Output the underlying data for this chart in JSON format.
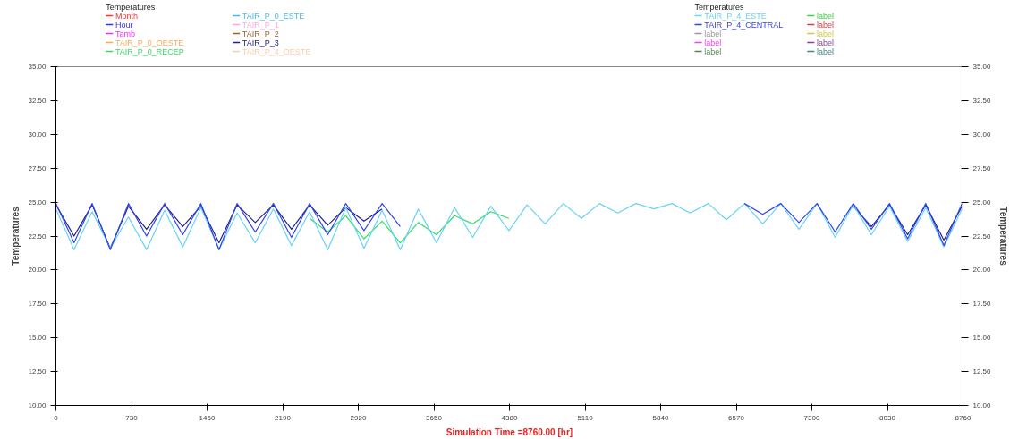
{
  "chart_data": {
    "type": "line",
    "xlabel": "Simulation Time =8760.00 [hr]",
    "ylabel": "Temperatures",
    "y2label": "Temperatures",
    "legend_title": "Temperatures",
    "legend": "top",
    "grid": false,
    "marker": "none",
    "line_style": "solid",
    "x": [
      0,
      175,
      350,
      525,
      700,
      875,
      1050,
      1225,
      1400,
      1575,
      1750,
      1925,
      2100,
      2275,
      2450,
      2625,
      2800,
      2975,
      3150,
      3325,
      3500,
      3675,
      3850,
      4025,
      4200,
      4375,
      4550,
      4725,
      4900,
      5075,
      5250,
      5425,
      5600,
      5775,
      5950,
      6125,
      6300,
      6475,
      6650,
      6825,
      7000,
      7175,
      7350,
      7525,
      7700,
      7875,
      8050,
      8225,
      8400,
      8575,
      8750
    ],
    "xlim": [
      0,
      8760
    ],
    "xticks": [
      0,
      730,
      1460,
      2190,
      2920,
      3650,
      4380,
      5110,
      5840,
      6570,
      7300,
      8030,
      8760
    ],
    "ylim": [
      10,
      35
    ],
    "yticks": [
      {
        "value": 10,
        "label": "10.00"
      },
      {
        "value": 12.5,
        "label": "12.50"
      },
      {
        "value": 15,
        "label": "15.00"
      },
      {
        "value": 17.5,
        "label": "17.50"
      },
      {
        "value": 20,
        "label": "20.00"
      },
      {
        "value": 22.5,
        "label": "22.50"
      },
      {
        "value": 25,
        "label": "25.00"
      },
      {
        "value": 27.5,
        "label": "27.50"
      },
      {
        "value": 30,
        "label": "30.00"
      },
      {
        "value": 32.5,
        "label": "32.50"
      },
      {
        "value": 35,
        "label": "35.00"
      }
    ],
    "y2lim": [
      10,
      35
    ],
    "y2ticks": [
      {
        "value": 10,
        "label": "10.00"
      },
      {
        "value": 12.5,
        "label": "12.50"
      },
      {
        "value": 15,
        "label": "15.00"
      },
      {
        "value": 17.5,
        "label": "17.50"
      },
      {
        "value": 20,
        "label": "20.00"
      },
      {
        "value": 22.5,
        "label": "22.50"
      },
      {
        "value": 25,
        "label": "25.00"
      },
      {
        "value": 27.5,
        "label": "27.50"
      },
      {
        "value": 30,
        "label": "30.00"
      },
      {
        "value": 32.5,
        "label": "32.50"
      },
      {
        "value": 35,
        "label": "35.00"
      }
    ],
    "series": [
      {
        "name": "Month",
        "color": "#ff3333",
        "values": [
          null,
          null,
          null,
          null,
          null,
          null,
          null,
          null,
          null,
          null,
          null,
          null,
          null,
          null,
          null,
          null,
          null,
          null,
          null,
          null,
          null,
          null,
          null,
          null,
          null,
          null,
          null,
          null,
          null,
          null,
          null,
          null,
          null,
          null,
          null,
          null,
          null,
          null,
          null,
          null,
          null,
          null,
          null,
          null,
          null,
          null,
          null,
          null,
          null,
          null,
          null
        ]
      },
      {
        "name": "Hour",
        "color": "#3333ff",
        "values": [
          null,
          null,
          null,
          null,
          null,
          null,
          null,
          null,
          null,
          null,
          null,
          null,
          null,
          null,
          null,
          null,
          null,
          null,
          null,
          null,
          null,
          null,
          null,
          null,
          null,
          null,
          null,
          null,
          null,
          null,
          null,
          null,
          null,
          null,
          null,
          null,
          null,
          null,
          null,
          null,
          null,
          null,
          null,
          null,
          null,
          null,
          null,
          null,
          null,
          null,
          null
        ]
      },
      {
        "name": "Tamb",
        "color": "#ee33ee",
        "values": [
          null,
          null,
          null,
          null,
          null,
          null,
          null,
          null,
          null,
          null,
          null,
          null,
          null,
          null,
          null,
          null,
          null,
          null,
          null,
          null,
          null,
          null,
          null,
          null,
          null,
          null,
          null,
          null,
          null,
          null,
          null,
          null,
          null,
          null,
          null,
          null,
          null,
          null,
          null,
          null,
          null,
          null,
          null,
          null,
          null,
          null,
          null,
          null,
          null,
          null,
          null
        ]
      },
      {
        "name": "TAIR_P_0_OESTE",
        "color": "#ffaa55",
        "values": [
          null,
          null,
          null,
          null,
          null,
          null,
          null,
          null,
          null,
          null,
          null,
          null,
          null,
          null,
          null,
          null,
          null,
          null,
          null,
          null,
          null,
          null,
          null,
          null,
          null,
          null,
          null,
          null,
          null,
          null,
          null,
          null,
          null,
          null,
          null,
          null,
          null,
          null,
          null,
          null,
          null,
          null,
          null,
          null,
          null,
          null,
          null,
          null,
          null,
          null,
          null
        ]
      },
      {
        "name": "TAIR_P_0_RECEP",
        "color": "#33dd66",
        "values": [
          null,
          null,
          null,
          null,
          null,
          null,
          null,
          null,
          null,
          null,
          null,
          null,
          null,
          null,
          23.8,
          22.8,
          24.0,
          22.3,
          23.6,
          22.0,
          23.5,
          22.6,
          24.0,
          23.4,
          24.3,
          23.8,
          null,
          null,
          null,
          null,
          null,
          null,
          null,
          null,
          null,
          null,
          null,
          null,
          null,
          null,
          null,
          null,
          null,
          null,
          null,
          null,
          null,
          null,
          null,
          null,
          null
        ]
      },
      {
        "name": "TAIR_P_0_ESTE",
        "color": "#44bbee",
        "values": [
          null,
          null,
          null,
          null,
          null,
          null,
          null,
          null,
          null,
          null,
          null,
          null,
          null,
          null,
          null,
          null,
          null,
          null,
          null,
          null,
          null,
          null,
          null,
          null,
          null,
          null,
          null,
          null,
          null,
          null,
          null,
          null,
          null,
          null,
          null,
          null,
          null,
          null,
          null,
          null,
          null,
          null,
          null,
          null,
          null,
          null,
          null,
          null,
          null,
          null,
          null
        ]
      },
      {
        "name": "TAIR_P_1",
        "color": "#ffaadd",
        "values": [
          null,
          null,
          null,
          null,
          null,
          null,
          null,
          null,
          null,
          null,
          null,
          null,
          null,
          null,
          null,
          null,
          null,
          null,
          null,
          null,
          null,
          null,
          null,
          null,
          null,
          null,
          null,
          null,
          null,
          null,
          null,
          null,
          null,
          null,
          null,
          null,
          null,
          null,
          null,
          null,
          null,
          null,
          null,
          null,
          null,
          null,
          null,
          null,
          null,
          null,
          null
        ]
      },
      {
        "name": "TAIR_P_2",
        "color": "#996633",
        "values": [
          null,
          null,
          null,
          null,
          null,
          null,
          null,
          null,
          null,
          null,
          null,
          null,
          null,
          null,
          null,
          null,
          null,
          null,
          null,
          null,
          null,
          null,
          null,
          null,
          null,
          null,
          null,
          null,
          null,
          null,
          null,
          null,
          null,
          null,
          null,
          null,
          null,
          null,
          null,
          null,
          null,
          null,
          null,
          null,
          null,
          null,
          null,
          null,
          null,
          null,
          null
        ]
      },
      {
        "name": "TAIR_P_3",
        "color": "#222288",
        "values": [
          24.8,
          22.5,
          24.8,
          21.6,
          24.7,
          23.0,
          24.8,
          23.2,
          24.7,
          22.0,
          24.8,
          23.5,
          24.8,
          23.0,
          24.8,
          23.3,
          24.6,
          23.6,
          24.5,
          null,
          null,
          null,
          null,
          null,
          null,
          null,
          null,
          null,
          null,
          null,
          null,
          null,
          null,
          null,
          null,
          null,
          null,
          null,
          null,
          null,
          null,
          null,
          null,
          null,
          24.7,
          23.2,
          24.8,
          22.6,
          24.8,
          22.2,
          24.7
        ]
      },
      {
        "name": "TAIR_P_4_OESTE",
        "color": "#ffccaa",
        "values": [
          null,
          null,
          null,
          null,
          null,
          null,
          null,
          null,
          null,
          null,
          null,
          null,
          null,
          null,
          null,
          null,
          null,
          null,
          null,
          null,
          null,
          null,
          null,
          null,
          null,
          null,
          null,
          null,
          null,
          null,
          null,
          null,
          null,
          null,
          null,
          null,
          null,
          null,
          null,
          null,
          null,
          null,
          null,
          null,
          null,
          null,
          null,
          null,
          null,
          null,
          null
        ]
      },
      {
        "name": "TAIR_P_4_ESTE",
        "color": "#66d4f4",
        "values": [
          24.5,
          21.5,
          24.3,
          21.6,
          23.9,
          21.5,
          24.4,
          21.7,
          24.6,
          21.5,
          24.2,
          22.0,
          24.5,
          21.8,
          24.3,
          21.5,
          24.6,
          21.6,
          24.4,
          21.5,
          24.5,
          22.0,
          24.6,
          22.4,
          24.7,
          22.9,
          24.8,
          23.4,
          24.9,
          23.8,
          24.9,
          24.2,
          24.9,
          24.5,
          24.9,
          24.2,
          24.9,
          23.7,
          24.9,
          23.4,
          24.9,
          23.0,
          24.9,
          22.4,
          24.8,
          22.6,
          24.7,
          22.1,
          24.6,
          21.7,
          24.5
        ]
      },
      {
        "name": "TAIR_P_4_CENTRAL",
        "color": "#3344ee",
        "values": [
          24.9,
          22.0,
          24.9,
          21.5,
          24.9,
          22.5,
          24.9,
          22.6,
          24.9,
          21.5,
          24.9,
          22.8,
          24.9,
          22.4,
          24.9,
          22.6,
          24.9,
          22.9,
          24.9,
          23.2,
          null,
          null,
          null,
          null,
          null,
          null,
          null,
          null,
          null,
          null,
          null,
          null,
          null,
          null,
          null,
          null,
          null,
          null,
          24.9,
          24.1,
          24.9,
          23.5,
          24.9,
          22.8,
          24.9,
          23.0,
          24.9,
          22.3,
          24.9,
          21.8,
          24.9
        ]
      },
      {
        "name": "label",
        "color": "#999999",
        "values": [
          null,
          null,
          null,
          null,
          null,
          null,
          null,
          null,
          null,
          null,
          null,
          null,
          null,
          null,
          null,
          null,
          null,
          null,
          null,
          null,
          null,
          null,
          null,
          null,
          null,
          null,
          null,
          null,
          null,
          null,
          null,
          null,
          null,
          null,
          null,
          null,
          null,
          null,
          null,
          null,
          null,
          null,
          null,
          null,
          null,
          null,
          null,
          null,
          null,
          null,
          null
        ]
      },
      {
        "name": "label",
        "color": "#ee44ee",
        "values": [
          null,
          null,
          null,
          null,
          null,
          null,
          null,
          null,
          null,
          null,
          null,
          null,
          null,
          null,
          null,
          null,
          null,
          null,
          null,
          null,
          null,
          null,
          null,
          null,
          null,
          null,
          null,
          null,
          null,
          null,
          null,
          null,
          null,
          null,
          null,
          null,
          null,
          null,
          null,
          null,
          null,
          null,
          null,
          null,
          null,
          null,
          null,
          null,
          null,
          null,
          null
        ]
      },
      {
        "name": "label",
        "color": "#558855",
        "values": [
          null,
          null,
          null,
          null,
          null,
          null,
          null,
          null,
          null,
          null,
          null,
          null,
          null,
          null,
          null,
          null,
          null,
          null,
          null,
          null,
          null,
          null,
          null,
          null,
          null,
          null,
          null,
          null,
          null,
          null,
          null,
          null,
          null,
          null,
          null,
          null,
          null,
          null,
          null,
          null,
          null,
          null,
          null,
          null,
          null,
          null,
          null,
          null,
          null,
          null,
          null
        ]
      },
      {
        "name": "label",
        "color": "#44cc44",
        "values": [
          null,
          null,
          null,
          null,
          null,
          null,
          null,
          null,
          null,
          null,
          null,
          null,
          null,
          null,
          null,
          null,
          null,
          null,
          null,
          null,
          null,
          null,
          null,
          null,
          null,
          null,
          null,
          null,
          null,
          null,
          null,
          null,
          null,
          null,
          null,
          null,
          null,
          null,
          null,
          null,
          null,
          null,
          null,
          null,
          null,
          null,
          null,
          null,
          null,
          null,
          null
        ]
      },
      {
        "name": "label",
        "color": "#cc4444",
        "values": [
          null,
          null,
          null,
          null,
          null,
          null,
          null,
          null,
          null,
          null,
          null,
          null,
          null,
          null,
          null,
          null,
          null,
          null,
          null,
          null,
          null,
          null,
          null,
          null,
          null,
          null,
          null,
          null,
          null,
          null,
          null,
          null,
          null,
          null,
          null,
          null,
          null,
          null,
          null,
          null,
          null,
          null,
          null,
          null,
          null,
          null,
          null,
          null,
          null,
          null,
          null
        ]
      },
      {
        "name": "label",
        "color": "#cccc44",
        "values": [
          null,
          null,
          null,
          null,
          null,
          null,
          null,
          null,
          null,
          null,
          null,
          null,
          null,
          null,
          null,
          null,
          null,
          null,
          null,
          null,
          null,
          null,
          null,
          null,
          null,
          null,
          null,
          null,
          null,
          null,
          null,
          null,
          null,
          null,
          null,
          null,
          null,
          null,
          null,
          null,
          null,
          null,
          null,
          null,
          null,
          null,
          null,
          null,
          null,
          null,
          null
        ]
      },
      {
        "name": "label",
        "color": "#884488",
        "values": [
          null,
          null,
          null,
          null,
          null,
          null,
          null,
          null,
          null,
          null,
          null,
          null,
          null,
          null,
          null,
          null,
          null,
          null,
          null,
          null,
          null,
          null,
          null,
          null,
          null,
          null,
          null,
          null,
          null,
          null,
          null,
          null,
          null,
          null,
          null,
          null,
          null,
          null,
          null,
          null,
          null,
          null,
          null,
          null,
          null,
          null,
          null,
          null,
          null,
          null,
          null
        ]
      },
      {
        "name": "label",
        "color": "#448888",
        "values": [
          null,
          null,
          null,
          null,
          null,
          null,
          null,
          null,
          null,
          null,
          null,
          null,
          null,
          null,
          null,
          null,
          null,
          null,
          null,
          null,
          null,
          null,
          null,
          null,
          null,
          null,
          null,
          null,
          null,
          null,
          null,
          null,
          null,
          null,
          null,
          null,
          null,
          null,
          null,
          null,
          null,
          null,
          null,
          null,
          null,
          null,
          null,
          null,
          null,
          null,
          null
        ]
      }
    ]
  }
}
